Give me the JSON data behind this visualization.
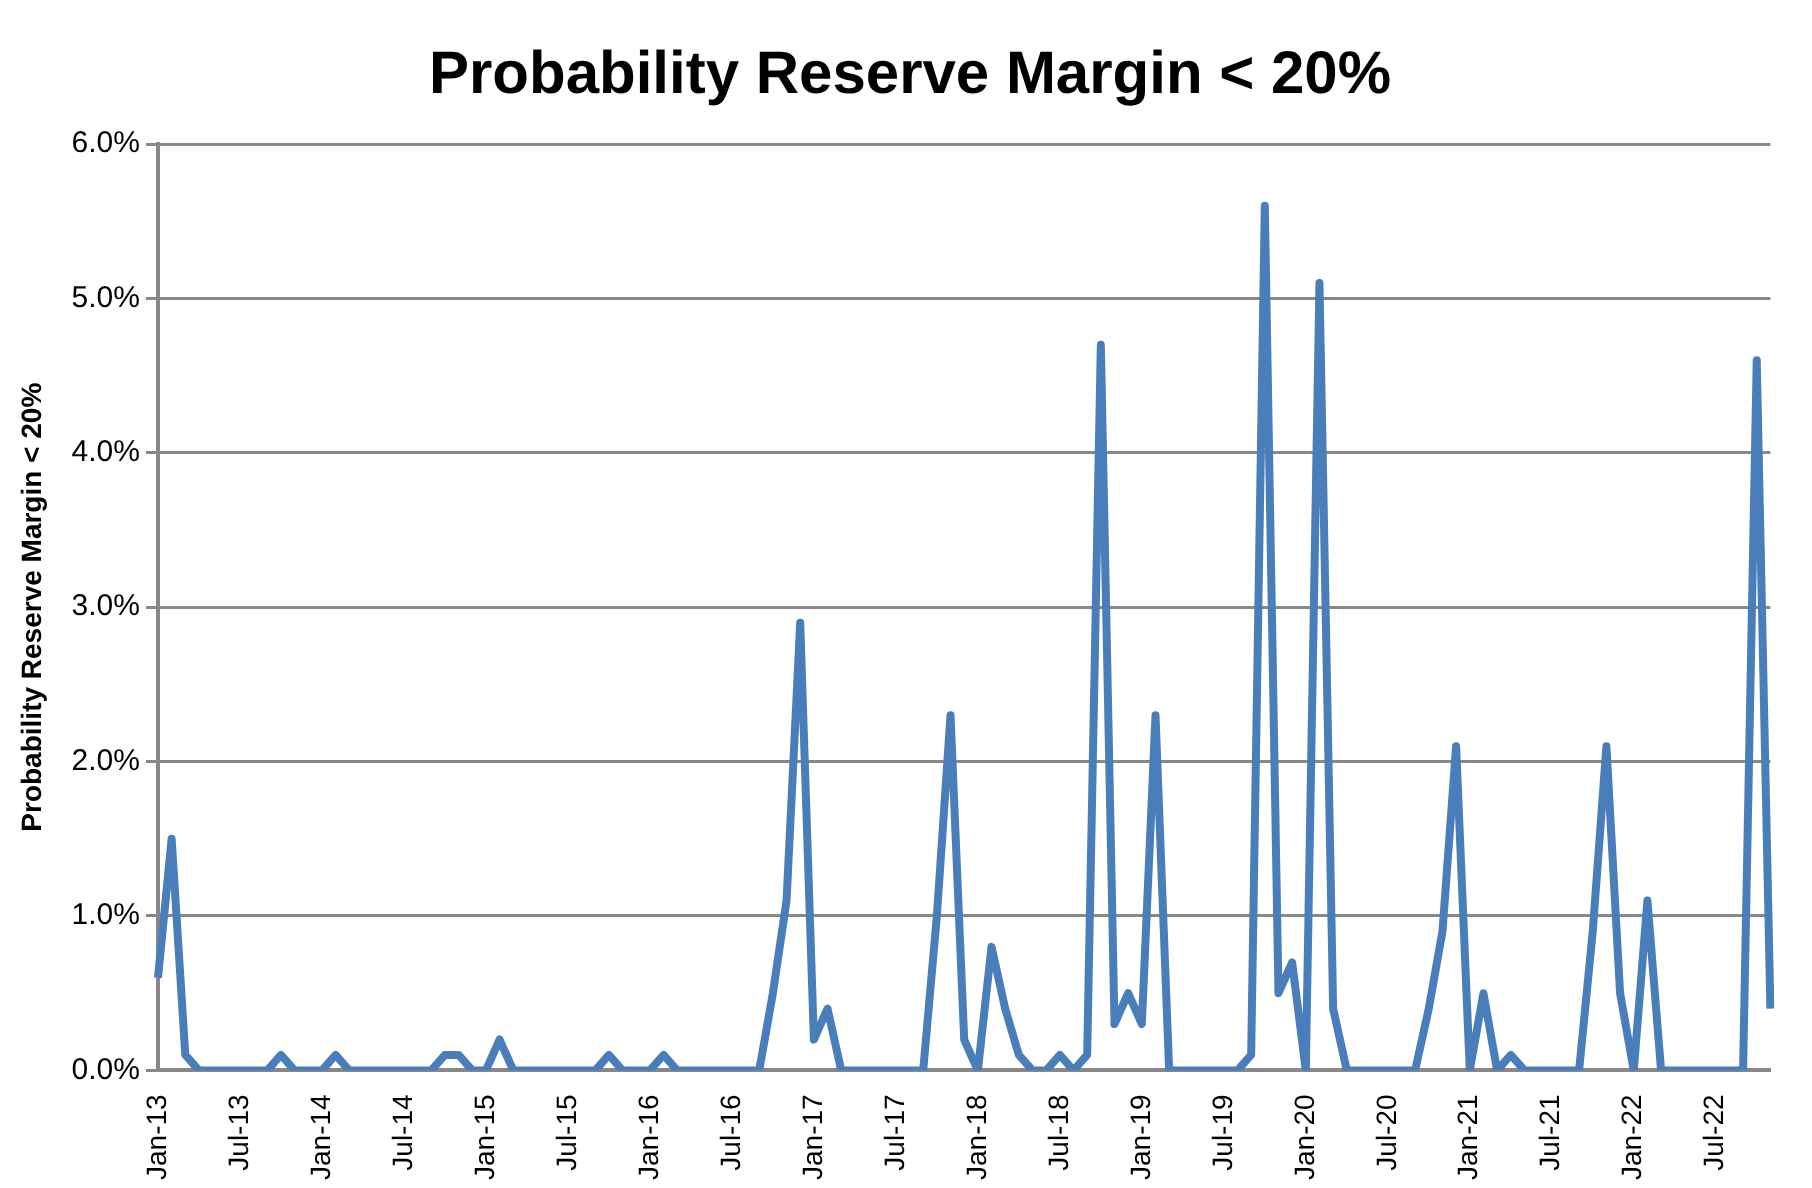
{
  "chart_data": {
    "type": "line",
    "title": "Probability Reserve Margin < 20%",
    "ylabel": "Probability Reserve Margin < 20%",
    "categories": [
      "Jan-13",
      null,
      null,
      null,
      null,
      null,
      "Jul-13",
      null,
      null,
      null,
      null,
      null,
      "Jan-14",
      null,
      null,
      null,
      null,
      null,
      "Jul-14",
      null,
      null,
      null,
      null,
      null,
      "Jan-15",
      null,
      null,
      null,
      null,
      null,
      "Jul-15",
      null,
      null,
      null,
      null,
      null,
      "Jan-16",
      null,
      null,
      null,
      null,
      null,
      "Jul-16",
      null,
      null,
      null,
      null,
      null,
      "Jan-17",
      null,
      null,
      null,
      null,
      null,
      "Jul-17",
      null,
      null,
      null,
      null,
      null,
      "Jan-18",
      null,
      null,
      null,
      null,
      null,
      "Jul-18",
      null,
      null,
      null,
      null,
      null,
      "Jan-19",
      null,
      null,
      null,
      null,
      null,
      "Jul-19",
      null,
      null,
      null,
      null,
      null,
      "Jan-20",
      null,
      null,
      null,
      null,
      null,
      "Jul-20",
      null,
      null,
      null,
      null,
      null,
      "Jan-21",
      null,
      null,
      null,
      null,
      null,
      "Jul-21",
      null,
      null,
      null,
      null,
      null,
      "Jan-22",
      null,
      null,
      null,
      null,
      null,
      "Jul-22",
      null,
      null,
      null,
      null
    ],
    "series": [
      {
        "color": "#4a7ebb",
        "values": [
          0.6,
          1.5,
          0.1,
          0,
          0,
          0,
          0,
          0,
          0,
          0.1,
          0,
          0,
          0,
          0.1,
          0,
          0,
          0,
          0,
          0,
          0,
          0,
          0.1,
          0.1,
          0,
          0,
          0.2,
          0,
          0,
          0,
          0,
          0,
          0,
          0,
          0.1,
          0,
          0,
          0,
          0.1,
          0,
          0,
          0,
          0,
          0,
          0,
          0,
          0.5,
          1.1,
          2.9,
          0.2,
          0.4,
          0,
          0,
          0,
          0,
          0,
          0,
          0,
          1.0,
          2.3,
          0.2,
          0,
          0.8,
          0.4,
          0.1,
          0,
          0,
          0.1,
          0,
          0.1,
          4.7,
          0.3,
          0.5,
          0.3,
          2.3,
          0,
          0,
          0,
          0,
          0,
          0,
          0.1,
          5.6,
          0.5,
          0.7,
          0,
          5.1,
          0.4,
          0,
          0,
          0,
          0,
          0,
          0,
          0.4,
          0.9,
          2.1,
          0,
          0.5,
          0,
          0.1,
          0,
          0,
          0,
          0,
          0,
          0.9,
          2.1,
          0.5,
          0,
          1.1,
          0,
          0,
          0,
          0,
          0,
          0,
          0,
          4.6,
          0.4
        ]
      }
    ],
    "ylim": [
      0,
      6
    ],
    "yticks": [
      {
        "value": 0,
        "label": "0.0%"
      },
      {
        "value": 1,
        "label": "1.0%"
      },
      {
        "value": 2,
        "label": "2.0%"
      },
      {
        "value": 3,
        "label": "3.0%"
      },
      {
        "value": 4,
        "label": "4.0%"
      },
      {
        "value": 5,
        "label": "5.0%"
      },
      {
        "value": 6,
        "label": "6.0%"
      }
    ],
    "grid": "y",
    "marker": "none",
    "line_style": "solid"
  }
}
